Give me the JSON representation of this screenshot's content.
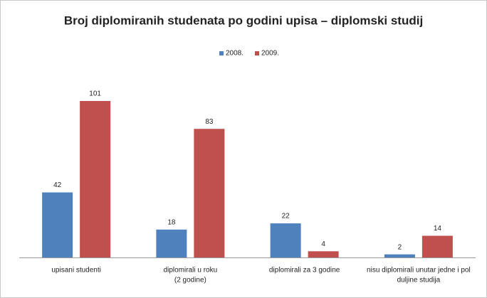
{
  "chart_data": {
    "type": "bar",
    "title": "Broj diplomiranih studenata po godini upisa – diplomski studij",
    "categories": [
      [
        "upisani studenti"
      ],
      [
        "diplomirali u roku",
        "(2 godine)"
      ],
      [
        "diplomirali za 3 godine"
      ],
      [
        "nisu diplomirali unutar jedne i pol",
        "duljine studija"
      ]
    ],
    "series": [
      {
        "name": "2008.",
        "color": "#4f81bd",
        "values": [
          42,
          18,
          22,
          2
        ]
      },
      {
        "name": "2009.",
        "color": "#c0504d",
        "values": [
          101,
          83,
          4,
          14
        ]
      }
    ],
    "legend": "top"
  }
}
